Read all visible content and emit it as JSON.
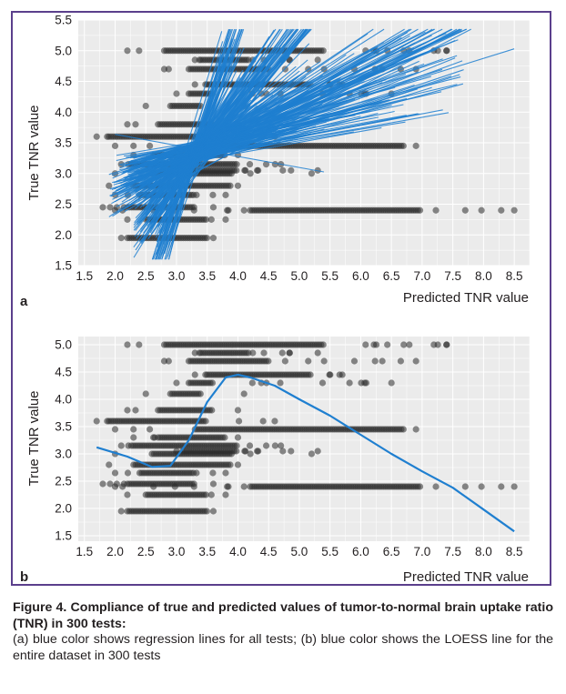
{
  "figure": {
    "caption_title": "Figure 4. Compliance of true and predicted values of tumor-to-normal brain uptake ratio (TNR) in 300 tests:",
    "caption_text": "(a) blue color shows regression lines for all tests; (b) blue color shows the LOESS line for the entire dataset in 300 tests"
  },
  "colors": {
    "frame": "#5b3f8c",
    "panel_bg": "#ebebeb",
    "grid": "#ffffff",
    "points": "#2b2b2b",
    "lines": "#1f7fd0"
  },
  "chart_data": [
    {
      "panel_label": "a",
      "type": "scatter",
      "xlabel": "Predicted TNR value",
      "ylabel": "True TNR value",
      "xlim": [
        1.4,
        8.75
      ],
      "ylim": [
        1.5,
        5.5
      ],
      "xticks": [
        "1.5",
        "2.0",
        "2.5",
        "3.0",
        "3.5",
        "4.0",
        "4.5",
        "5.0",
        "5.5",
        "6.0",
        "6.5",
        "7.0",
        "7.5",
        "8.0",
        "8.5"
      ],
      "yticks": [
        "1.5",
        "2.0",
        "2.5",
        "3.0",
        "3.5",
        "4.0",
        "4.5",
        "5.0",
        "5.5"
      ],
      "true_levels": [
        1.95,
        2.25,
        2.4,
        2.45,
        2.65,
        2.8,
        3.0,
        3.05,
        3.15,
        3.3,
        3.45,
        3.6,
        3.8,
        4.1,
        4.3,
        4.45,
        4.7,
        4.85,
        5.0
      ],
      "scatter_points": [
        {
          "y": 1.95,
          "x_range": [
            2.1,
            3.6
          ],
          "dense": [
            2.2,
            3.5
          ]
        },
        {
          "y": 2.25,
          "x_range": [
            2.2,
            3.8
          ],
          "dense": [
            2.5,
            3.5
          ]
        },
        {
          "y": 2.4,
          "x_range": [
            2.0,
            8.5
          ],
          "dense": [
            4.2,
            7.0
          ]
        },
        {
          "y": 2.45,
          "x_range": [
            1.8,
            3.6
          ],
          "dense": [
            2.2,
            3.3
          ]
        },
        {
          "y": 2.65,
          "x_range": [
            2.0,
            3.8
          ],
          "dense": [
            2.4,
            3.3
          ]
        },
        {
          "y": 2.8,
          "x_range": [
            1.9,
            4.0
          ],
          "dense": [
            2.3,
            3.9
          ]
        },
        {
          "y": 3.0,
          "x_range": [
            2.0,
            5.2
          ],
          "dense": [
            2.6,
            3.9
          ]
        },
        {
          "y": 3.05,
          "x_range": [
            3.0,
            5.3
          ],
          "dense": [
            3.1,
            4.0
          ]
        },
        {
          "y": 3.15,
          "x_range": [
            2.1,
            4.7
          ],
          "dense": [
            2.3,
            4.0
          ]
        },
        {
          "y": 3.3,
          "x_range": [
            2.3,
            4.0
          ],
          "dense": [
            2.7,
            3.8
          ]
        },
        {
          "y": 3.45,
          "x_range": [
            2.0,
            6.9
          ],
          "dense": [
            3.3,
            6.7
          ]
        },
        {
          "y": 3.6,
          "x_range": [
            1.7,
            4.6
          ],
          "dense": [
            1.9,
            3.5
          ]
        },
        {
          "y": 3.8,
          "x_range": [
            2.2,
            4.0
          ],
          "dense": [
            2.7,
            3.6
          ]
        },
        {
          "y": 4.1,
          "x_range": [
            2.5,
            4.1
          ],
          "dense": [
            2.9,
            3.4
          ]
        },
        {
          "y": 4.3,
          "x_range": [
            3.0,
            6.5
          ],
          "dense": [
            3.2,
            3.6
          ]
        },
        {
          "y": 4.45,
          "x_range": [
            3.3,
            5.7
          ],
          "dense": [
            3.5,
            5.2
          ]
        },
        {
          "y": 4.7,
          "x_range": [
            2.8,
            6.9
          ],
          "dense": [
            3.2,
            4.5
          ]
        },
        {
          "y": 4.85,
          "x_range": [
            3.3,
            5.3
          ],
          "dense": [
            3.4,
            4.2
          ]
        },
        {
          "y": 5.0,
          "x_range": [
            2.2,
            7.4
          ],
          "dense": [
            2.8,
            5.4
          ]
        }
      ],
      "regression_lines": "300 per-test regression lines"
    },
    {
      "panel_label": "b",
      "type": "scatter",
      "xlabel": "Predicted TNR value",
      "ylabel": "True TNR value",
      "xlim": [
        1.4,
        8.75
      ],
      "ylim": [
        1.4,
        5.15
      ],
      "xticks": [
        "1.5",
        "2.0",
        "2.5",
        "3.0",
        "3.5",
        "4.0",
        "4.5",
        "5.0",
        "5.5",
        "6.0",
        "6.5",
        "7.0",
        "7.5",
        "8.0",
        "8.5"
      ],
      "yticks": [
        "1.5",
        "2.0",
        "2.5",
        "3.0",
        "3.5",
        "4.0",
        "4.5",
        "5.0"
      ],
      "scatter_points": "same dataset as panel a",
      "loess_line": {
        "x": [
          1.7,
          2.2,
          2.6,
          2.9,
          3.2,
          3.5,
          3.8,
          4.0,
          4.2,
          4.6,
          5.0,
          5.5,
          6.0,
          6.5,
          7.0,
          7.5,
          8.0,
          8.5
        ],
        "y": [
          3.12,
          2.95,
          2.76,
          2.78,
          3.25,
          3.95,
          4.4,
          4.45,
          4.4,
          4.25,
          4.0,
          3.7,
          3.35,
          3.0,
          2.68,
          2.38,
          1.98,
          1.58
        ]
      }
    }
  ]
}
